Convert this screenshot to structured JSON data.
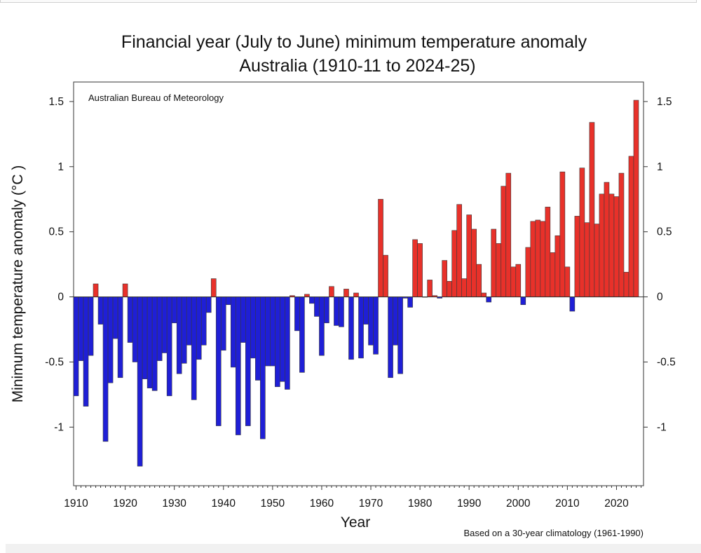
{
  "chart_data": {
    "type": "bar",
    "title": "Financial year (July to June) minimum temperature anomaly",
    "subtitle": "Australia (1910-11 to 2024-25)",
    "xlabel": "Year",
    "ylabel": "Minimum temperature anomaly (°C )",
    "annotation": "Australian Bureau of Meteorology",
    "footnote": "Based on a 30-year climatology (1961-1990)",
    "xlim": [
      1909.5,
      2025.5
    ],
    "ylim": [
      -1.45,
      1.65
    ],
    "x_ticks": [
      "1910",
      "1920",
      "1930",
      "1940",
      "1950",
      "1960",
      "1970",
      "1980",
      "1990",
      "2000",
      "2010",
      "2020"
    ],
    "y_ticks": [
      "1.5",
      "1",
      "0.5",
      "0",
      "-0.5",
      "-1"
    ],
    "grid": false,
    "positive_color": "#e8312a",
    "negative_color": "#1f1fd6",
    "years": [
      1910,
      1911,
      1912,
      1913,
      1914,
      1915,
      1916,
      1917,
      1918,
      1919,
      1920,
      1921,
      1922,
      1923,
      1924,
      1925,
      1926,
      1927,
      1928,
      1929,
      1930,
      1931,
      1932,
      1933,
      1934,
      1935,
      1936,
      1937,
      1938,
      1939,
      1940,
      1941,
      1942,
      1943,
      1944,
      1945,
      1946,
      1947,
      1948,
      1949,
      1950,
      1951,
      1952,
      1953,
      1954,
      1955,
      1956,
      1957,
      1958,
      1959,
      1960,
      1961,
      1962,
      1963,
      1964,
      1965,
      1966,
      1967,
      1968,
      1969,
      1970,
      1971,
      1972,
      1973,
      1974,
      1975,
      1976,
      1977,
      1978,
      1979,
      1980,
      1981,
      1982,
      1983,
      1984,
      1985,
      1986,
      1987,
      1988,
      1989,
      1990,
      1991,
      1992,
      1993,
      1994,
      1995,
      1996,
      1997,
      1998,
      1999,
      2000,
      2001,
      2002,
      2003,
      2004,
      2005,
      2006,
      2007,
      2008,
      2009,
      2010,
      2011,
      2012,
      2013,
      2014,
      2015,
      2016,
      2017,
      2018,
      2019,
      2020,
      2021,
      2022,
      2023,
      2024
    ],
    "values": [
      -0.76,
      -0.49,
      -0.84,
      -0.45,
      0.1,
      -0.21,
      -1.11,
      -0.66,
      -0.32,
      -0.62,
      0.1,
      -0.35,
      -0.5,
      -1.3,
      -0.63,
      -0.7,
      -0.72,
      -0.49,
      -0.43,
      -0.76,
      -0.2,
      -0.59,
      -0.51,
      -0.37,
      -0.79,
      -0.48,
      -0.37,
      -0.12,
      0.14,
      -0.99,
      -0.41,
      -0.06,
      -0.54,
      -1.06,
      -0.35,
      -0.99,
      -0.47,
      -0.64,
      -1.09,
      -0.53,
      -0.53,
      -0.69,
      -0.65,
      -0.71,
      0.01,
      -0.26,
      -0.58,
      0.02,
      -0.05,
      -0.15,
      -0.45,
      -0.2,
      0.08,
      -0.22,
      -0.23,
      0.06,
      -0.48,
      0.03,
      -0.47,
      -0.21,
      -0.37,
      -0.44,
      0.75,
      0.32,
      -0.62,
      -0.37,
      -0.59,
      -0.01,
      -0.08,
      0.44,
      0.41,
      0.0,
      0.13,
      0.01,
      -0.01,
      0.28,
      0.12,
      0.51,
      0.71,
      0.14,
      0.63,
      0.52,
      0.25,
      0.03,
      -0.04,
      0.52,
      0.41,
      0.85,
      0.95,
      0.23,
      0.25,
      -0.06,
      0.38,
      0.58,
      0.59,
      0.58,
      0.69,
      0.34,
      0.47,
      0.96,
      0.23,
      -0.11,
      0.62,
      0.99,
      0.57,
      1.34,
      0.56,
      0.79,
      0.88,
      0.79,
      0.77,
      0.95,
      0.19,
      1.08,
      1.51
    ]
  }
}
